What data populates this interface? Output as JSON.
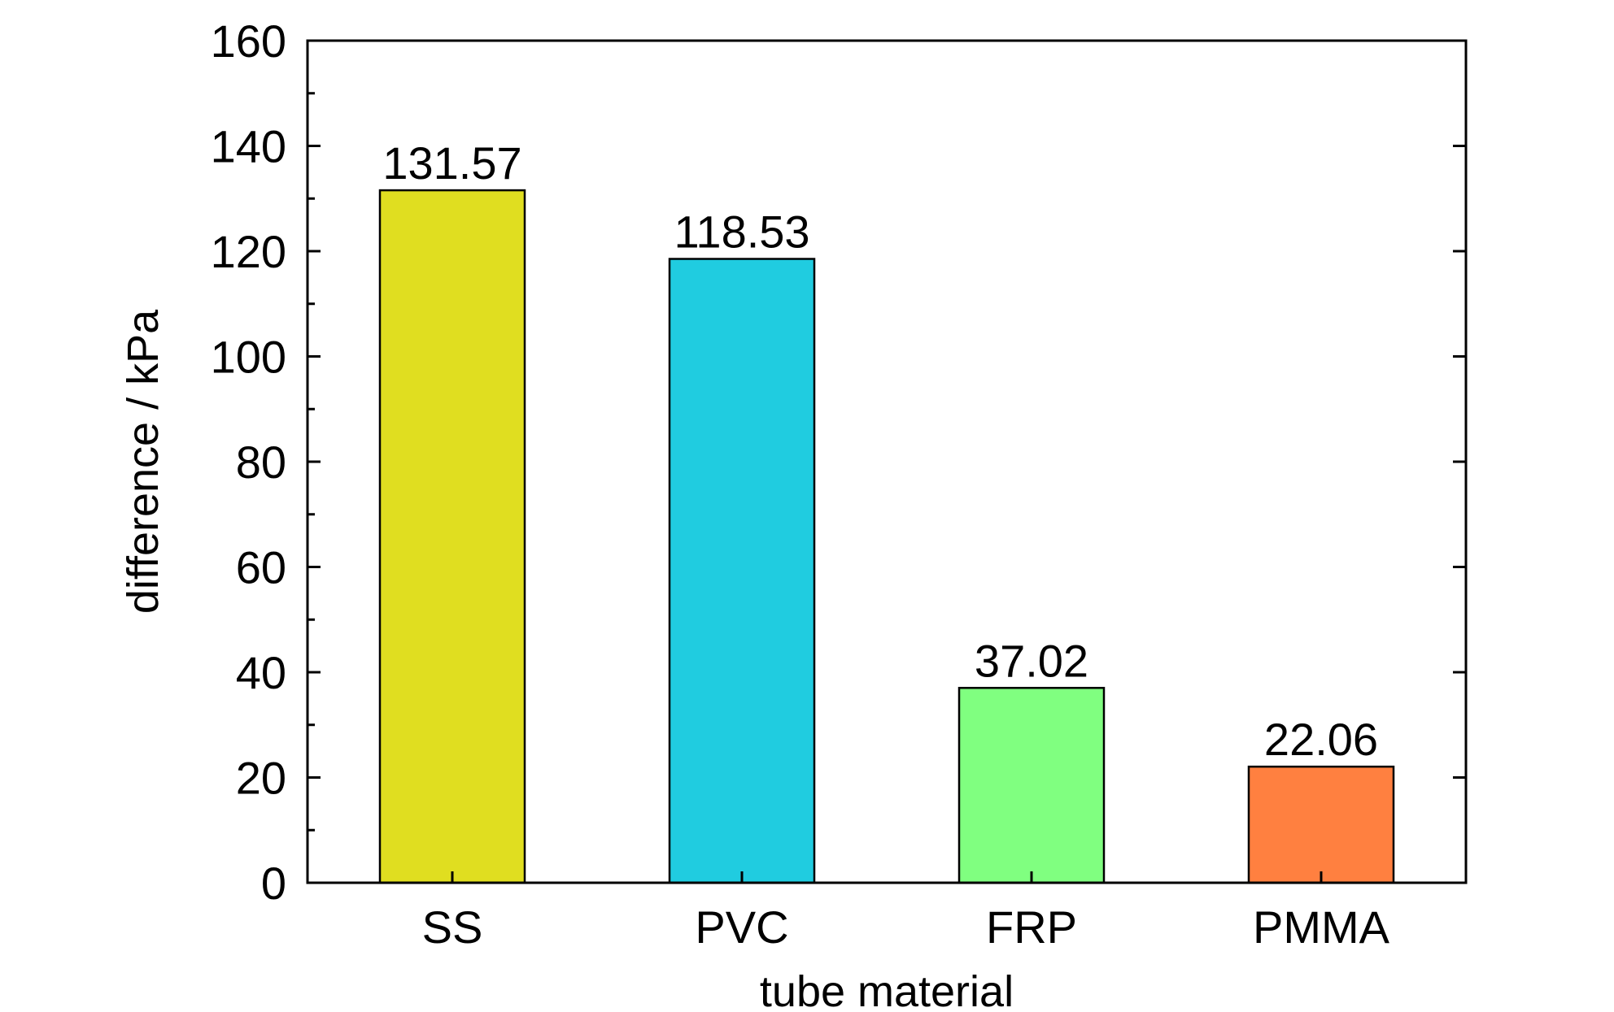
{
  "chart_data": {
    "type": "bar",
    "title": "",
    "xlabel": "tube material",
    "ylabel": "difference / kPa",
    "categories": [
      "SS",
      "PVC",
      "FRP",
      "PMMA"
    ],
    "values": [
      131.57,
      118.53,
      37.02,
      22.06
    ],
    "value_labels": [
      "131.57",
      "118.53",
      "37.02",
      "22.06"
    ],
    "colors": [
      "#E0DE20",
      "#20CCE0",
      "#80FF80",
      "#FF8040"
    ],
    "ylim": [
      0,
      160
    ],
    "y_major_ticks": [
      0,
      20,
      40,
      60,
      80,
      100,
      120,
      140,
      160
    ],
    "y_tick_labels": [
      "0",
      "20",
      "40",
      "60",
      "80",
      "100",
      "120",
      "140",
      "160"
    ],
    "y_minor_step": 10,
    "grid": false,
    "legend": "none"
  }
}
